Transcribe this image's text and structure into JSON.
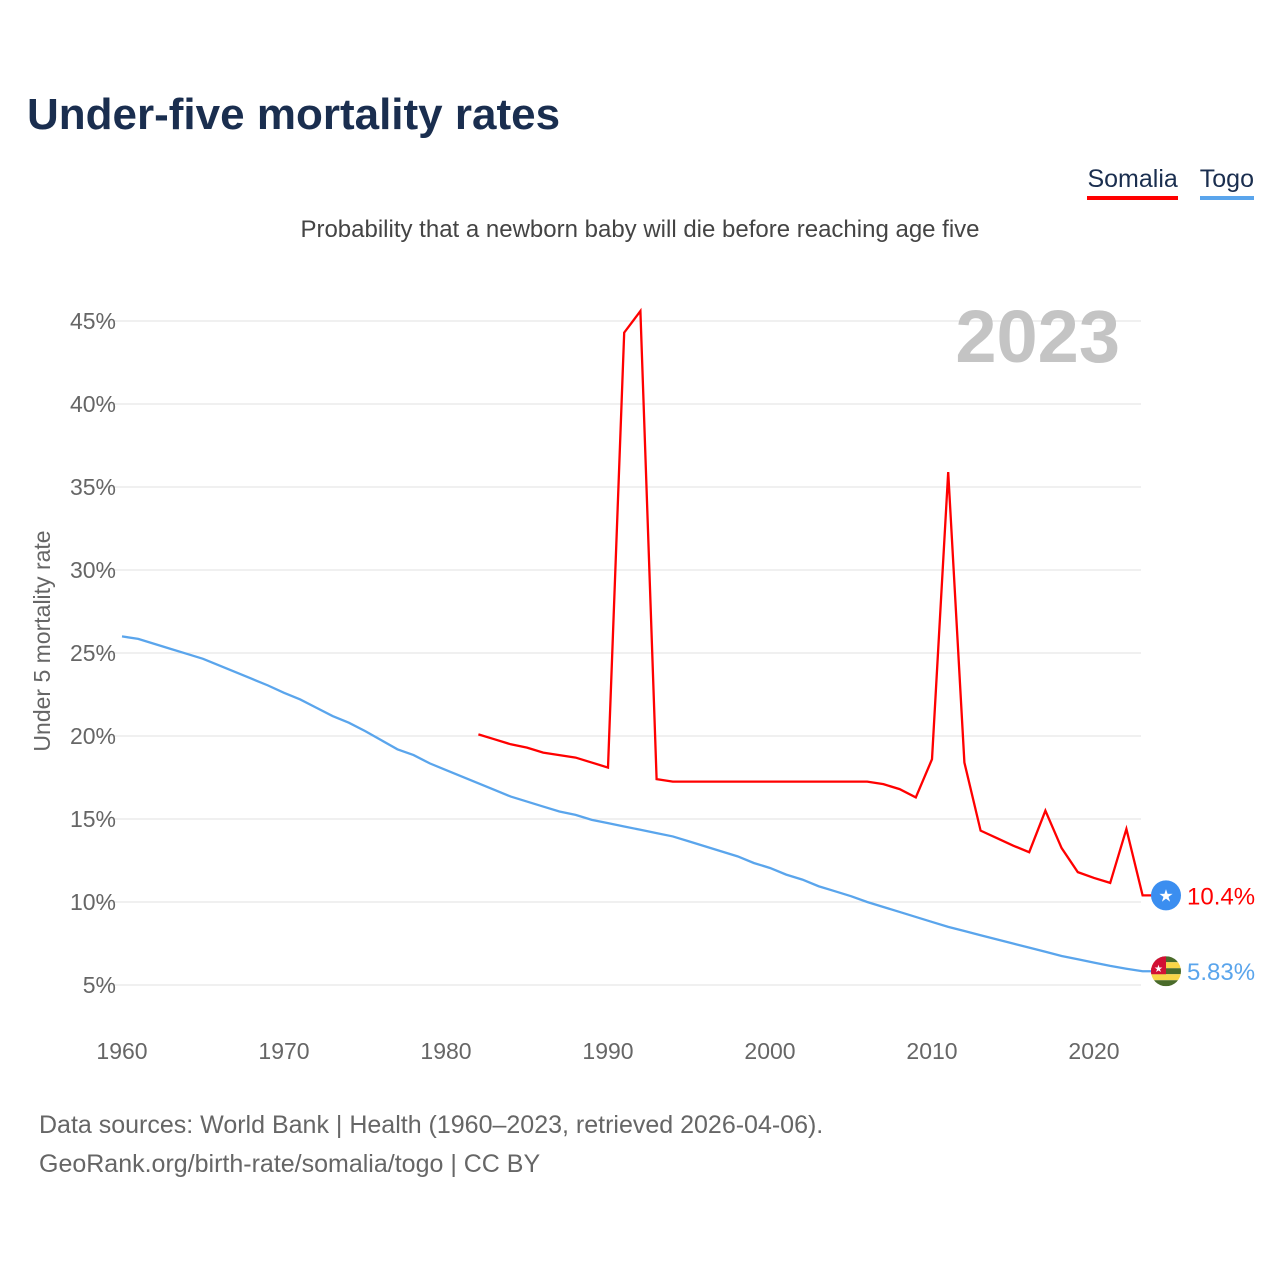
{
  "title": "Under-five mortality rates",
  "subtitle": "Probability that a newborn baby will die before reaching age five",
  "legend": [
    {
      "label": "Somalia",
      "color": "#ff0000"
    },
    {
      "label": "Togo",
      "color": "#5aa5ec"
    }
  ],
  "footer": {
    "line1": "Data sources: World Bank | Health (1960–2023, retrieved 2026-04-06).",
    "line2": "GeoRank.org/birth-rate/somalia/togo | CC BY"
  },
  "chart_data": {
    "type": "line",
    "title": "Under-five mortality rates",
    "ylabel": "Under 5 mortality rate",
    "xlabel": "",
    "year_label": "2023",
    "xlim": [
      1960,
      2023
    ],
    "ylim": [
      2.5,
      47
    ],
    "x_ticks": [
      1960,
      1970,
      1980,
      1990,
      2000,
      2010,
      2020
    ],
    "y_ticks": [
      5,
      10,
      15,
      20,
      25,
      30,
      35,
      40,
      45
    ],
    "y_tick_labels": [
      "5%",
      "10%",
      "15%",
      "20%",
      "25%",
      "30%",
      "35%",
      "40%",
      "45%"
    ],
    "grid": true,
    "legend_position": "top-right",
    "series": [
      {
        "name": "Somalia",
        "color": "#ff0000",
        "end_label": "10.4%",
        "flag": "somalia",
        "x": [
          1982,
          1983,
          1984,
          1985,
          1986,
          1987,
          1988,
          1989,
          1990,
          1991,
          1992,
          1993,
          1994,
          1995,
          1996,
          1997,
          1998,
          1999,
          2000,
          2001,
          2002,
          2003,
          2004,
          2005,
          2006,
          2007,
          2008,
          2009,
          2010,
          2011,
          2012,
          2013,
          2014,
          2015,
          2016,
          2017,
          2018,
          2019,
          2020,
          2021,
          2022,
          2023
        ],
        "values": [
          20.1,
          19.8,
          19.5,
          19.3,
          19.0,
          18.85,
          18.7,
          18.4,
          18.1,
          44.3,
          45.6,
          17.4,
          17.25,
          17.25,
          17.25,
          17.25,
          17.25,
          17.25,
          17.25,
          17.25,
          17.25,
          17.25,
          17.25,
          17.25,
          17.25,
          17.1,
          16.8,
          16.3,
          18.6,
          35.9,
          18.4,
          14.3,
          13.85,
          13.4,
          13.0,
          15.5,
          13.25,
          11.8,
          11.45,
          11.15,
          14.4,
          10.4
        ]
      },
      {
        "name": "Togo",
        "color": "#5aa5ec",
        "end_label": "5.83%",
        "flag": "togo",
        "x": [
          1960,
          1961,
          1962,
          1963,
          1964,
          1965,
          1966,
          1967,
          1968,
          1969,
          1970,
          1971,
          1972,
          1973,
          1974,
          1975,
          1976,
          1977,
          1978,
          1979,
          1980,
          1981,
          1982,
          1983,
          1984,
          1985,
          1986,
          1987,
          1988,
          1989,
          1990,
          1991,
          1992,
          1993,
          1994,
          1995,
          1996,
          1997,
          1998,
          1999,
          2000,
          2001,
          2002,
          2003,
          2004,
          2005,
          2006,
          2007,
          2008,
          2009,
          2010,
          2011,
          2012,
          2013,
          2014,
          2015,
          2016,
          2017,
          2018,
          2019,
          2020,
          2021,
          2022,
          2023
        ],
        "values": [
          26.0,
          25.85,
          25.55,
          25.25,
          24.95,
          24.65,
          24.25,
          23.85,
          23.45,
          23.05,
          22.6,
          22.2,
          21.7,
          21.2,
          20.8,
          20.3,
          19.75,
          19.2,
          18.85,
          18.35,
          17.95,
          17.55,
          17.15,
          16.75,
          16.35,
          16.05,
          15.75,
          15.45,
          15.25,
          14.95,
          14.75,
          14.55,
          14.35,
          14.15,
          13.95,
          13.65,
          13.35,
          13.05,
          12.75,
          12.35,
          12.05,
          11.65,
          11.35,
          10.95,
          10.65,
          10.35,
          10.0,
          9.7,
          9.4,
          9.1,
          8.8,
          8.5,
          8.25,
          8.0,
          7.75,
          7.5,
          7.25,
          7.0,
          6.75,
          6.55,
          6.35,
          6.15,
          5.98,
          5.83
        ]
      }
    ]
  }
}
